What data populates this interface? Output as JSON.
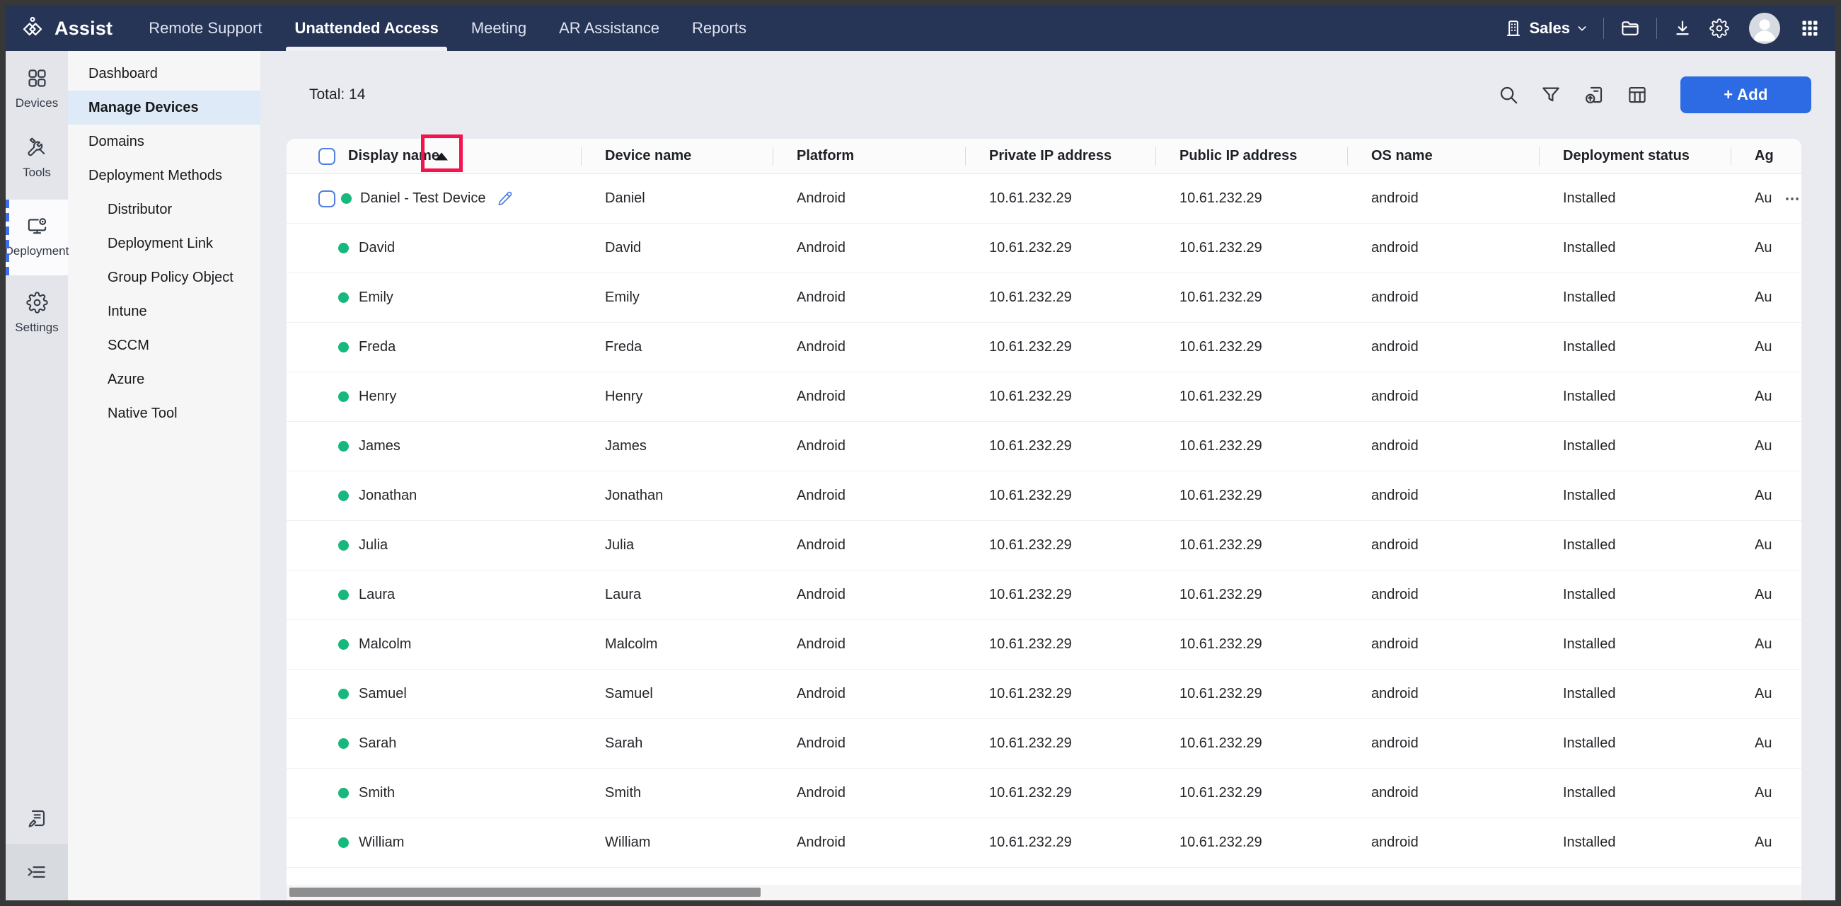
{
  "colors": {
    "navbar_bg": "#263456",
    "accent_blue": "#2c6be4",
    "control_blue": "#4f7fe0",
    "status_green": "#17b87d",
    "annotation_red": "#f2134f",
    "page_bg": "#e9ebf1"
  },
  "navbar": {
    "brand": "Assist",
    "items": [
      {
        "label": "Remote Support",
        "active": false
      },
      {
        "label": "Unattended Access",
        "active": true
      },
      {
        "label": "Meeting",
        "active": false
      },
      {
        "label": "AR Assistance",
        "active": false
      },
      {
        "label": "Reports",
        "active": false
      }
    ],
    "workspace": {
      "label": "Sales",
      "icon": "department-icon",
      "chevron": "chevron-down-icon"
    },
    "right_icons": [
      "folder-icon",
      "download-icon",
      "gear-icon",
      "avatar",
      "apps-grid-icon"
    ]
  },
  "rail": {
    "items": [
      {
        "label": "Devices",
        "icon": "devices-grid-icon",
        "active": false
      },
      {
        "label": "Tools",
        "icon": "tools-icon",
        "active": false
      },
      {
        "label": "Deployment",
        "icon": "deployment-monitor-icon",
        "active": true
      },
      {
        "label": "Settings",
        "icon": "settings-gear-icon",
        "active": false
      }
    ],
    "bottom_icons": [
      "feedback-note-icon",
      "collapse-menu-icon"
    ]
  },
  "subnav": {
    "items": [
      {
        "label": "Dashboard",
        "level": 1,
        "active": false
      },
      {
        "label": "Manage Devices",
        "level": 1,
        "active": true
      },
      {
        "label": "Domains",
        "level": 1,
        "active": false
      },
      {
        "label": "Deployment Methods",
        "level": 1,
        "active": false
      },
      {
        "label": "Distributor",
        "level": 2,
        "active": false
      },
      {
        "label": "Deployment Link",
        "level": 2,
        "active": false
      },
      {
        "label": "Group Policy Object",
        "level": 2,
        "active": false
      },
      {
        "label": "Intune",
        "level": 2,
        "active": false
      },
      {
        "label": "SCCM",
        "level": 2,
        "active": false
      },
      {
        "label": "Azure",
        "level": 2,
        "active": false
      },
      {
        "label": "Native Tool",
        "level": 2,
        "active": false
      }
    ]
  },
  "toolbar": {
    "total_label": "Total: 14",
    "add_label": "+ Add",
    "icons": [
      "search-icon",
      "filter-icon",
      "export-icon",
      "table-columns-icon"
    ]
  },
  "table": {
    "columns": [
      "Display name",
      "Device name",
      "Platform",
      "Private IP address",
      "Public IP address",
      "OS name",
      "Deployment status",
      "Ag"
    ],
    "sort": {
      "column": "Display name",
      "direction": "ascending"
    },
    "rows": [
      {
        "display_name": "Daniel - Test Device",
        "device_name": "Daniel",
        "platform": "Android",
        "private_ip": "10.61.232.29",
        "public_ip": "10.61.232.29",
        "os_name": "android",
        "deployment_status": "Installed",
        "agent": "Au",
        "controls": true
      },
      {
        "display_name": "David",
        "device_name": "David",
        "platform": "Android",
        "private_ip": "10.61.232.29",
        "public_ip": "10.61.232.29",
        "os_name": "android",
        "deployment_status": "Installed",
        "agent": "Au",
        "controls": false
      },
      {
        "display_name": "Emily",
        "device_name": "Emily",
        "platform": "Android",
        "private_ip": "10.61.232.29",
        "public_ip": "10.61.232.29",
        "os_name": "android",
        "deployment_status": "Installed",
        "agent": "Au",
        "controls": false
      },
      {
        "display_name": "Freda",
        "device_name": "Freda",
        "platform": "Android",
        "private_ip": "10.61.232.29",
        "public_ip": "10.61.232.29",
        "os_name": "android",
        "deployment_status": "Installed",
        "agent": "Au",
        "controls": false
      },
      {
        "display_name": "Henry",
        "device_name": "Henry",
        "platform": "Android",
        "private_ip": "10.61.232.29",
        "public_ip": "10.61.232.29",
        "os_name": "android",
        "deployment_status": "Installed",
        "agent": "Au",
        "controls": false
      },
      {
        "display_name": "James",
        "device_name": "James",
        "platform": "Android",
        "private_ip": "10.61.232.29",
        "public_ip": "10.61.232.29",
        "os_name": "android",
        "deployment_status": "Installed",
        "agent": "Au",
        "controls": false
      },
      {
        "display_name": "Jonathan",
        "device_name": "Jonathan",
        "platform": "Android",
        "private_ip": "10.61.232.29",
        "public_ip": "10.61.232.29",
        "os_name": "android",
        "deployment_status": "Installed",
        "agent": "Au",
        "controls": false
      },
      {
        "display_name": "Julia",
        "device_name": "Julia",
        "platform": "Android",
        "private_ip": "10.61.232.29",
        "public_ip": "10.61.232.29",
        "os_name": "android",
        "deployment_status": "Installed",
        "agent": "Au",
        "controls": false
      },
      {
        "display_name": "Laura",
        "device_name": "Laura",
        "platform": "Android",
        "private_ip": "10.61.232.29",
        "public_ip": "10.61.232.29",
        "os_name": "android",
        "deployment_status": "Installed",
        "agent": "Au",
        "controls": false
      },
      {
        "display_name": "Malcolm",
        "device_name": "Malcolm",
        "platform": "Android",
        "private_ip": "10.61.232.29",
        "public_ip": "10.61.232.29",
        "os_name": "android",
        "deployment_status": "Installed",
        "agent": "Au",
        "controls": false
      },
      {
        "display_name": "Samuel",
        "device_name": "Samuel",
        "platform": "Android",
        "private_ip": "10.61.232.29",
        "public_ip": "10.61.232.29",
        "os_name": "android",
        "deployment_status": "Installed",
        "agent": "Au",
        "controls": false
      },
      {
        "display_name": "Sarah",
        "device_name": "Sarah",
        "platform": "Android",
        "private_ip": "10.61.232.29",
        "public_ip": "10.61.232.29",
        "os_name": "android",
        "deployment_status": "Installed",
        "agent": "Au",
        "controls": false
      },
      {
        "display_name": "Smith",
        "device_name": "Smith",
        "platform": "Android",
        "private_ip": "10.61.232.29",
        "public_ip": "10.61.232.29",
        "os_name": "android",
        "deployment_status": "Installed",
        "agent": "Au",
        "controls": false
      },
      {
        "display_name": "William",
        "device_name": "William",
        "platform": "Android",
        "private_ip": "10.61.232.29",
        "public_ip": "10.61.232.29",
        "os_name": "android",
        "deployment_status": "Installed",
        "agent": "Au",
        "controls": false
      }
    ]
  },
  "annotation": {
    "shape": "rectangle",
    "target": "display-name-sort-ascending-icon",
    "color": "#f2134f"
  }
}
